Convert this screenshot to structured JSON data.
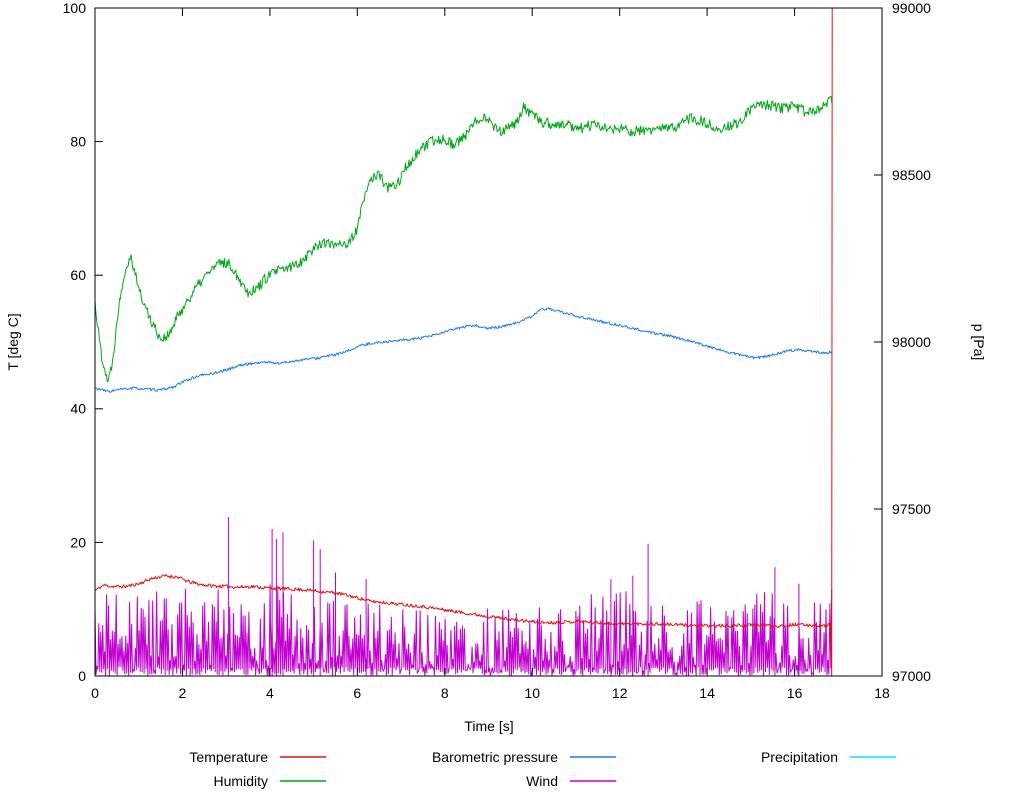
{
  "chart_data": {
    "type": "line",
    "title": "",
    "xlabel": "Time [s]",
    "ylabel_left": "T [deg C]",
    "ylabel_right": "p [Pa]",
    "x_range": [
      0,
      18
    ],
    "x_ticks": [
      0,
      2,
      4,
      6,
      8,
      10,
      12,
      14,
      16,
      18
    ],
    "y_left_range": [
      0,
      100
    ],
    "y_left_ticks": [
      0,
      20,
      40,
      60,
      80,
      100
    ],
    "y_right_range": [
      97000,
      99000
    ],
    "y_right_ticks": [
      97000,
      97500,
      98000,
      98500,
      99000
    ],
    "grid": false,
    "legend_position": "bottom",
    "axis_color": "#000000",
    "series": [
      {
        "name": "Wind",
        "color": "#c000d0",
        "axis": "left",
        "style": "spikes",
        "seed": 44,
        "dt": 0.022,
        "x_end": 16.85,
        "envelope": [
          [
            0,
            12
          ],
          [
            0.5,
            13
          ],
          [
            1,
            13.5
          ],
          [
            1.5,
            13
          ],
          [
            2,
            14
          ],
          [
            2.5,
            13
          ],
          [
            3,
            13
          ],
          [
            3.2,
            12
          ],
          [
            4,
            14
          ],
          [
            4.5,
            13
          ],
          [
            5,
            13
          ],
          [
            5.5,
            12
          ],
          [
            6,
            11
          ],
          [
            6.5,
            11
          ],
          [
            7,
            10.5
          ],
          [
            7.5,
            10
          ],
          [
            8,
            10
          ],
          [
            8.5,
            10
          ],
          [
            9,
            10.5
          ],
          [
            9.5,
            10
          ],
          [
            10,
            11
          ],
          [
            10.5,
            10.5
          ],
          [
            11,
            11
          ],
          [
            11.5,
            13
          ],
          [
            12,
            13
          ],
          [
            12.5,
            13
          ],
          [
            13,
            12
          ],
          [
            13.5,
            11
          ],
          [
            14,
            12
          ],
          [
            14.5,
            12
          ],
          [
            15,
            13
          ],
          [
            15.5,
            13
          ],
          [
            16,
            12
          ],
          [
            16.5,
            12
          ],
          [
            16.85,
            13
          ]
        ],
        "spikes": [
          [
            3.05,
            23.8
          ],
          [
            4.05,
            22
          ],
          [
            4.15,
            20.5
          ],
          [
            4.3,
            21.5
          ],
          [
            5.0,
            20.3
          ],
          [
            5.15,
            19
          ],
          [
            5.5,
            15.5
          ],
          [
            6.2,
            14.5
          ],
          [
            11.8,
            14.5
          ],
          [
            12.3,
            15
          ],
          [
            12.65,
            19.8
          ],
          [
            15.55,
            16.3
          ],
          [
            16.1,
            13.8
          ]
        ]
      },
      {
        "name": "Temperature",
        "color": "#e01212",
        "axis": "left",
        "style": "noisy",
        "noise": 0.25,
        "seed": 11,
        "keypoints": [
          [
            0,
            12.8
          ],
          [
            0.2,
            13.6
          ],
          [
            0.4,
            13.4
          ],
          [
            0.7,
            13.4
          ],
          [
            1.0,
            13.8
          ],
          [
            1.3,
            14.6
          ],
          [
            1.6,
            15.0
          ],
          [
            1.9,
            14.8
          ],
          [
            2.1,
            14.2
          ],
          [
            2.4,
            13.7
          ],
          [
            2.7,
            13.5
          ],
          [
            3.0,
            13.4
          ],
          [
            3.3,
            13.3
          ],
          [
            3.6,
            13.4
          ],
          [
            3.9,
            13.2
          ],
          [
            4.2,
            13.1
          ],
          [
            4.5,
            13.0
          ],
          [
            4.8,
            12.9
          ],
          [
            5.1,
            12.7
          ],
          [
            5.4,
            12.5
          ],
          [
            5.7,
            12.2
          ],
          [
            6.0,
            11.7
          ],
          [
            6.3,
            11.2
          ],
          [
            6.6,
            11.0
          ],
          [
            6.9,
            10.8
          ],
          [
            7.2,
            10.6
          ],
          [
            7.5,
            10.4
          ],
          [
            7.8,
            10.1
          ],
          [
            8.1,
            9.8
          ],
          [
            8.4,
            9.5
          ],
          [
            8.7,
            9.2
          ],
          [
            9.0,
            8.9
          ],
          [
            9.3,
            8.7
          ],
          [
            9.6,
            8.4
          ],
          [
            9.9,
            8.2
          ],
          [
            10.2,
            8.0
          ],
          [
            10.5,
            8.0
          ],
          [
            10.8,
            8.1
          ],
          [
            11.1,
            8.2
          ],
          [
            11.4,
            8.0
          ],
          [
            11.7,
            7.9
          ],
          [
            12.0,
            7.8
          ],
          [
            12.4,
            7.8
          ],
          [
            12.8,
            7.8
          ],
          [
            13.2,
            7.7
          ],
          [
            13.6,
            7.6
          ],
          [
            14.0,
            7.5
          ],
          [
            14.4,
            7.5
          ],
          [
            14.8,
            7.6
          ],
          [
            15.2,
            7.6
          ],
          [
            15.6,
            7.5
          ],
          [
            16.0,
            7.7
          ],
          [
            16.4,
            7.6
          ],
          [
            16.7,
            7.5
          ],
          [
            16.83,
            7.8
          ],
          [
            16.85,
            0
          ],
          [
            16.86,
            100
          ]
        ]
      },
      {
        "name": "Humidity",
        "color": "#00a818",
        "axis": "left",
        "style": "noisy",
        "noise": 0.8,
        "seed": 22,
        "keypoints": [
          [
            0,
            56
          ],
          [
            0.05,
            53
          ],
          [
            0.15,
            48
          ],
          [
            0.3,
            44
          ],
          [
            0.4,
            47
          ],
          [
            0.5,
            53
          ],
          [
            0.6,
            58
          ],
          [
            0.7,
            61
          ],
          [
            0.8,
            63
          ],
          [
            0.9,
            61
          ],
          [
            1.0,
            58
          ],
          [
            1.1,
            56
          ],
          [
            1.3,
            53
          ],
          [
            1.5,
            50.5
          ],
          [
            1.7,
            51
          ],
          [
            1.9,
            54
          ],
          [
            2.1,
            56
          ],
          [
            2.3,
            58
          ],
          [
            2.6,
            60.5
          ],
          [
            2.9,
            62
          ],
          [
            3.1,
            61.5
          ],
          [
            3.3,
            59.5
          ],
          [
            3.5,
            57.5
          ],
          [
            3.7,
            58
          ],
          [
            3.9,
            59.5
          ],
          [
            4.1,
            60.5
          ],
          [
            4.4,
            61
          ],
          [
            4.7,
            62
          ],
          [
            5.0,
            64
          ],
          [
            5.2,
            65
          ],
          [
            5.4,
            64.5
          ],
          [
            5.6,
            65
          ],
          [
            5.8,
            64.5
          ],
          [
            6.0,
            67
          ],
          [
            6.1,
            70
          ],
          [
            6.3,
            74.5
          ],
          [
            6.5,
            75
          ],
          [
            6.7,
            73
          ],
          [
            6.9,
            73.5
          ],
          [
            7.1,
            76
          ],
          [
            7.4,
            78.5
          ],
          [
            7.7,
            80
          ],
          [
            8.0,
            80.5
          ],
          [
            8.2,
            79.5
          ],
          [
            8.5,
            81
          ],
          [
            8.7,
            83
          ],
          [
            8.9,
            84
          ],
          [
            9.1,
            82.5
          ],
          [
            9.3,
            81.5
          ],
          [
            9.6,
            82.5
          ],
          [
            9.8,
            85
          ],
          [
            10.0,
            84
          ],
          [
            10.2,
            83
          ],
          [
            10.5,
            82.5
          ],
          [
            10.8,
            82.5
          ],
          [
            11.1,
            82
          ],
          [
            11.4,
            82.5
          ],
          [
            11.7,
            82
          ],
          [
            12.0,
            81.8
          ],
          [
            12.4,
            81.5
          ],
          [
            12.8,
            81.8
          ],
          [
            13.2,
            82
          ],
          [
            13.6,
            83.5
          ],
          [
            13.9,
            83
          ],
          [
            14.2,
            82
          ],
          [
            14.5,
            82.3
          ],
          [
            14.8,
            83
          ],
          [
            15.0,
            85
          ],
          [
            15.3,
            85.5
          ],
          [
            15.7,
            85
          ],
          [
            16.0,
            85.3
          ],
          [
            16.3,
            84.3
          ],
          [
            16.6,
            84.8
          ],
          [
            16.85,
            86.5
          ]
        ]
      },
      {
        "name": "Barometric pressure",
        "color": "#1c7cf0",
        "axis": "right",
        "style": "noisy",
        "noise": 4,
        "seed": 33,
        "keypoints": [
          [
            0,
            97862
          ],
          [
            0.3,
            97852
          ],
          [
            0.6,
            97858
          ],
          [
            0.9,
            97862
          ],
          [
            1.2,
            97858
          ],
          [
            1.5,
            97856
          ],
          [
            1.8,
            97866
          ],
          [
            2.1,
            97886
          ],
          [
            2.4,
            97900
          ],
          [
            2.7,
            97906
          ],
          [
            3.0,
            97916
          ],
          [
            3.3,
            97930
          ],
          [
            3.6,
            97936
          ],
          [
            3.9,
            97940
          ],
          [
            4.2,
            97936
          ],
          [
            4.5,
            97942
          ],
          [
            4.8,
            97948
          ],
          [
            5.1,
            97952
          ],
          [
            5.4,
            97960
          ],
          [
            5.7,
            97968
          ],
          [
            6.0,
            97986
          ],
          [
            6.3,
            97996
          ],
          [
            6.6,
            98000
          ],
          [
            6.9,
            98004
          ],
          [
            7.2,
            98008
          ],
          [
            7.5,
            98012
          ],
          [
            7.8,
            98022
          ],
          [
            8.1,
            98034
          ],
          [
            8.4,
            98044
          ],
          [
            8.7,
            98050
          ],
          [
            9.0,
            98040
          ],
          [
            9.3,
            98046
          ],
          [
            9.6,
            98056
          ],
          [
            9.9,
            98070
          ],
          [
            10.2,
            98096
          ],
          [
            10.4,
            98100
          ],
          [
            10.7,
            98088
          ],
          [
            11.0,
            98078
          ],
          [
            11.3,
            98070
          ],
          [
            11.6,
            98060
          ],
          [
            12.0,
            98050
          ],
          [
            12.4,
            98038
          ],
          [
            12.8,
            98026
          ],
          [
            13.2,
            98016
          ],
          [
            13.6,
            98004
          ],
          [
            14.0,
            97988
          ],
          [
            14.4,
            97972
          ],
          [
            14.8,
            97960
          ],
          [
            15.1,
            97952
          ],
          [
            15.4,
            97958
          ],
          [
            15.8,
            97972
          ],
          [
            16.1,
            97978
          ],
          [
            16.4,
            97972
          ],
          [
            16.7,
            97966
          ],
          [
            16.85,
            97972
          ]
        ]
      },
      {
        "name": "Precipitation",
        "color": "#00e6e6",
        "axis": "left",
        "style": "none",
        "keypoints": []
      }
    ],
    "legend_entries": [
      {
        "label": "Temperature",
        "col": 0,
        "row": 0
      },
      {
        "label": "Humidity",
        "col": 0,
        "row": 1
      },
      {
        "label": "Barometric pressure",
        "col": 1,
        "row": 0
      },
      {
        "label": "Wind",
        "col": 1,
        "row": 1
      },
      {
        "label": "Precipitation",
        "col": 2,
        "row": 0
      }
    ]
  }
}
